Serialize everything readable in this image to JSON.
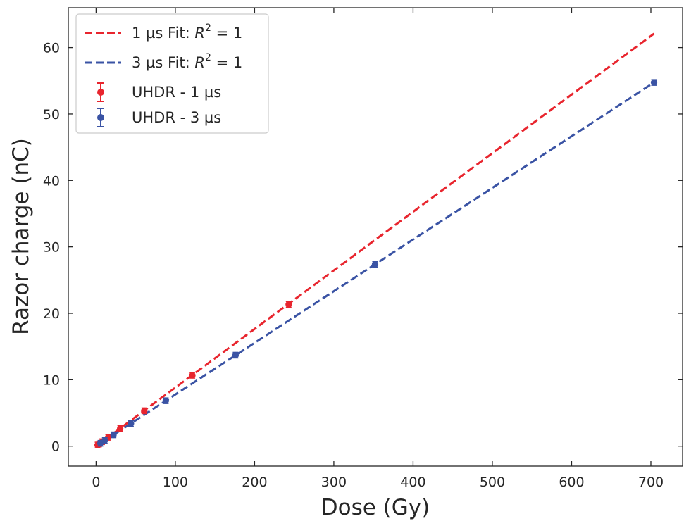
{
  "chart_data": {
    "type": "scatter",
    "title": "",
    "xlabel": "Dose (Gy)",
    "ylabel": "Razor charge (nC)",
    "xlim": [
      -35,
      740
    ],
    "ylim": [
      -3,
      66
    ],
    "xticks": [
      0,
      100,
      200,
      300,
      400,
      500,
      600,
      700
    ],
    "yticks": [
      0,
      10,
      20,
      30,
      40,
      50,
      60
    ],
    "grid": false,
    "legend_position": "top-left",
    "series": [
      {
        "name": "UHDR - 1 µs",
        "kind": "points-with-errorbars",
        "color": "#e8252e",
        "x": [
          1.9,
          3.8,
          7.6,
          15.2,
          30.4,
          60.8,
          121.5,
          243
        ],
        "y": [
          0.17,
          0.33,
          0.67,
          1.33,
          2.67,
          5.33,
          10.67,
          21.35
        ]
      },
      {
        "name": "UHDR - 3 µs",
        "kind": "points-with-errorbars",
        "color": "#3a53a4",
        "x": [
          5.5,
          11,
          22,
          44,
          88,
          176,
          352,
          704
        ],
        "y": [
          0.43,
          0.86,
          1.71,
          3.42,
          6.84,
          13.7,
          27.35,
          54.75
        ]
      },
      {
        "name": "1 µs Fit: R",
        "kind": "dashed-fit-line",
        "color": "#e8252e",
        "x": [
          0,
          704
        ],
        "y": [
          0,
          62.1
        ]
      },
      {
        "name": "3 µs Fit: R",
        "kind": "dashed-fit-line",
        "color": "#3a53a4",
        "x": [
          0,
          704
        ],
        "y": [
          0,
          54.75
        ]
      }
    ],
    "legend_entries": [
      {
        "label": "1 µs Fit: ",
        "r2_symbol": "R",
        "r2_exponent": "2",
        "r2_value": " = 1",
        "kind": "line",
        "color": "#e8252e"
      },
      {
        "label": "3 µs Fit: ",
        "r2_symbol": "R",
        "r2_exponent": "2",
        "r2_value": " = 1",
        "kind": "line",
        "color": "#3a53a4"
      },
      {
        "label": "UHDR - 1 µs",
        "kind": "marker",
        "color": "#e8252e"
      },
      {
        "label": "UHDR - 3 µs",
        "kind": "marker",
        "color": "#3a53a4"
      }
    ]
  }
}
